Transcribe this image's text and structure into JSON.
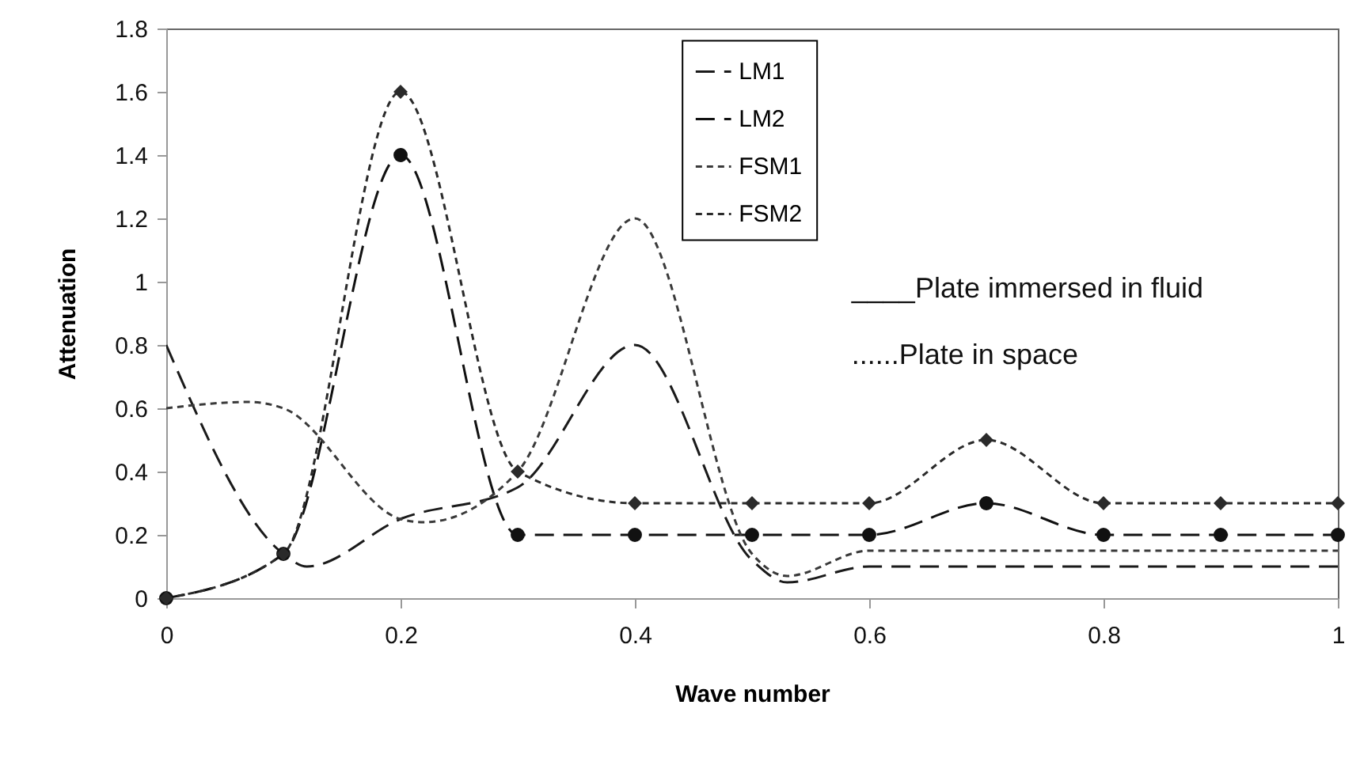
{
  "chart_data": {
    "type": "line",
    "xlabel": "Wave number",
    "ylabel": "Attenuation",
    "xlim": [
      0,
      1
    ],
    "xticks": [
      0,
      0.2,
      0.4,
      0.6,
      0.8,
      1
    ],
    "ylim": [
      0,
      1.8
    ],
    "yticks": [
      0,
      0.2,
      0.4,
      0.6,
      0.8,
      1,
      1.2,
      1.4,
      1.6,
      1.8
    ],
    "grid": false,
    "legend": "top",
    "annotations": [
      "____Plate immersed in fluid",
      "......Plate in space"
    ],
    "series": [
      {
        "name": "LM1",
        "color": "#1a1a1a",
        "line_style": "dashed",
        "marker": "none",
        "x": [
          0,
          0.1,
          0.12,
          0.2,
          0.3,
          0.4,
          0.5,
          0.53,
          0.6,
          0.7,
          0.8,
          0.9,
          1
        ],
        "values": [
          0.8,
          0.14,
          0.1,
          0.25,
          0.35,
          0.8,
          0.12,
          0.05,
          0.1,
          0.1,
          0.1,
          0.1,
          0.1
        ]
      },
      {
        "name": "LM2",
        "color": "#111111",
        "line_style": "dashed",
        "marker": "circle",
        "x": [
          0,
          0.1,
          0.2,
          0.3,
          0.4,
          0.5,
          0.6,
          0.7,
          0.8,
          0.9,
          1
        ],
        "values": [
          0,
          0.14,
          1.4,
          0.2,
          0.2,
          0.2,
          0.2,
          0.3,
          0.2,
          0.2,
          0.2
        ]
      },
      {
        "name": "FSM1",
        "color": "#3a3a3a",
        "line_style": "dotted",
        "marker": "none",
        "x": [
          0,
          0.07,
          0.1,
          0.2,
          0.22,
          0.3,
          0.4,
          0.5,
          0.53,
          0.6,
          0.7,
          0.8,
          0.9,
          1
        ],
        "values": [
          0.6,
          0.62,
          0.6,
          0.25,
          0.24,
          0.4,
          1.2,
          0.14,
          0.07,
          0.15,
          0.15,
          0.15,
          0.15,
          0.15
        ]
      },
      {
        "name": "FSM2",
        "color": "#2a2a2a",
        "line_style": "dotted",
        "marker": "diamond",
        "x": [
          0,
          0.1,
          0.2,
          0.3,
          0.4,
          0.5,
          0.6,
          0.7,
          0.8,
          0.9,
          1
        ],
        "values": [
          0,
          0.14,
          1.6,
          0.4,
          0.3,
          0.3,
          0.3,
          0.5,
          0.3,
          0.3,
          0.3
        ]
      }
    ]
  }
}
